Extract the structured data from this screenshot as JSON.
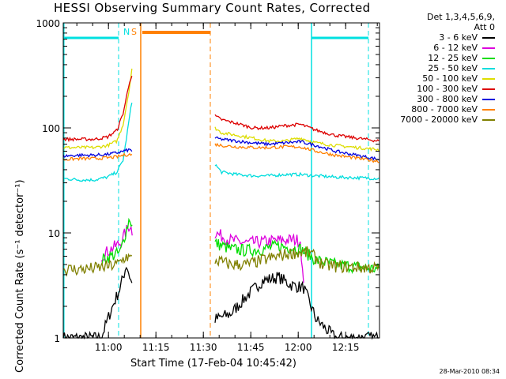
{
  "chart_data": {
    "type": "line",
    "title": "HESSI Observing Summary Count Rates, Corrected",
    "xlabel": "Start Time (17-Feb-04 10:45:42)",
    "ylabel": "Corrected Count Rate (s⁻¹ detector⁻¹)",
    "yscale": "log",
    "ylim": [
      1,
      1000
    ],
    "xlim_minutes": [
      0,
      100
    ],
    "x_ticks": [
      "11:00",
      "11:15",
      "11:30",
      "11:45",
      "12:00",
      "12:15"
    ],
    "x_tick_minutes": [
      14.3,
      29.3,
      44.3,
      59.3,
      74.3,
      89.3
    ],
    "y_ticks": [
      "1",
      "10",
      "100",
      "1000"
    ],
    "y_tick_values": [
      1,
      10,
      100,
      1000
    ],
    "legend_header": [
      "Det 1,3,4,5,6,9,",
      "Att 0"
    ],
    "series": [
      {
        "name": "3 - 6 keV",
        "color": "#000000",
        "pre": [
          [
            0,
            1.0
          ],
          [
            12,
            1.0
          ],
          [
            15,
            1.8
          ],
          [
            18,
            3.0
          ],
          [
            20,
            5.0
          ],
          [
            22,
            3.0
          ]
        ],
        "post": [
          [
            48,
            1.5
          ],
          [
            53,
            1.7
          ],
          [
            58,
            2.5
          ],
          [
            63,
            3.5
          ],
          [
            68,
            3.8
          ],
          [
            72,
            3.2
          ],
          [
            76,
            3.0
          ],
          [
            80,
            1.5
          ],
          [
            86,
            1.0
          ],
          [
            100,
            1.0
          ]
        ]
      },
      {
        "name": "6 - 12 keV",
        "color": "#dd00dd",
        "pre": [
          [
            12,
            6.0
          ],
          [
            15,
            7.0
          ],
          [
            18,
            8.0
          ],
          [
            21,
            12
          ],
          [
            22,
            10
          ]
        ],
        "post": [
          [
            48,
            10
          ],
          [
            53,
            8.5
          ],
          [
            58,
            8.0
          ],
          [
            63,
            8.2
          ],
          [
            68,
            8.5
          ],
          [
            73,
            8.6
          ],
          [
            75,
            8.5
          ],
          [
            76,
            3.0
          ]
        ]
      },
      {
        "name": "12 - 25 keV",
        "color": "#00dd00",
        "pre": [
          [
            12,
            5.5
          ],
          [
            15,
            6.0
          ],
          [
            18,
            6.5
          ],
          [
            21,
            14
          ],
          [
            22,
            11
          ]
        ],
        "post": [
          [
            48,
            8.0
          ],
          [
            53,
            7.0
          ],
          [
            58,
            6.8
          ],
          [
            63,
            7.0
          ],
          [
            68,
            7.5
          ],
          [
            75,
            7.0
          ],
          [
            80,
            5.5
          ],
          [
            86,
            5.0
          ],
          [
            100,
            4.5
          ]
        ]
      },
      {
        "name": "25 - 50 keV",
        "color": "#00dddd",
        "pre": [
          [
            0,
            33
          ],
          [
            5,
            32
          ],
          [
            10,
            32
          ],
          [
            14,
            34
          ],
          [
            17,
            38
          ],
          [
            19,
            50
          ],
          [
            21,
            130
          ],
          [
            22,
            200
          ]
        ],
        "post": [
          [
            48,
            45
          ],
          [
            50,
            38
          ],
          [
            55,
            36
          ],
          [
            60,
            35
          ],
          [
            65,
            35
          ],
          [
            70,
            36
          ],
          [
            75,
            36
          ],
          [
            80,
            35
          ],
          [
            86,
            34
          ],
          [
            100,
            33
          ]
        ]
      },
      {
        "name": "50 - 100 keV",
        "color": "#dddd00",
        "pre": [
          [
            0,
            65
          ],
          [
            5,
            65
          ],
          [
            10,
            65
          ],
          [
            14,
            68
          ],
          [
            17,
            75
          ],
          [
            19,
            110
          ],
          [
            21,
            250
          ],
          [
            22,
            420
          ]
        ],
        "post": [
          [
            48,
            100
          ],
          [
            50,
            90
          ],
          [
            55,
            85
          ],
          [
            60,
            80
          ],
          [
            65,
            75
          ],
          [
            70,
            75
          ],
          [
            75,
            80
          ],
          [
            80,
            72
          ],
          [
            86,
            68
          ],
          [
            100,
            62
          ]
        ]
      },
      {
        "name": "100 - 300 keV",
        "color": "#dd0000",
        "pre": [
          [
            0,
            78
          ],
          [
            5,
            78
          ],
          [
            10,
            78
          ],
          [
            14,
            82
          ],
          [
            17,
            95
          ],
          [
            19,
            140
          ],
          [
            21,
            280
          ],
          [
            22,
            330
          ]
        ],
        "post": [
          [
            48,
            130
          ],
          [
            50,
            120
          ],
          [
            55,
            110
          ],
          [
            60,
            100
          ],
          [
            65,
            100
          ],
          [
            70,
            105
          ],
          [
            75,
            108
          ],
          [
            80,
            95
          ],
          [
            86,
            85
          ],
          [
            100,
            75
          ]
        ]
      },
      {
        "name": "300 - 800 keV",
        "color": "#0000dd",
        "pre": [
          [
            0,
            54
          ],
          [
            5,
            55
          ],
          [
            10,
            55
          ],
          [
            14,
            56
          ],
          [
            17,
            58
          ],
          [
            19,
            60
          ],
          [
            21,
            62
          ],
          [
            22,
            60
          ]
        ],
        "post": [
          [
            48,
            80
          ],
          [
            50,
            78
          ],
          [
            55,
            75
          ],
          [
            60,
            72
          ],
          [
            65,
            70
          ],
          [
            70,
            72
          ],
          [
            75,
            74
          ],
          [
            80,
            68
          ],
          [
            86,
            60
          ],
          [
            100,
            50
          ]
        ]
      },
      {
        "name": "800 - 7000 keV",
        "color": "#ff8000",
        "pre": [
          [
            0,
            50
          ],
          [
            5,
            51
          ],
          [
            10,
            51
          ],
          [
            14,
            52
          ],
          [
            17,
            53
          ],
          [
            19,
            55
          ],
          [
            21,
            56
          ],
          [
            22,
            55
          ]
        ],
        "post": [
          [
            48,
            70
          ],
          [
            50,
            68
          ],
          [
            55,
            66
          ],
          [
            60,
            65
          ],
          [
            65,
            65
          ],
          [
            70,
            66
          ],
          [
            75,
            66
          ],
          [
            80,
            60
          ],
          [
            86,
            55
          ],
          [
            100,
            48
          ]
        ]
      },
      {
        "name": "7000 - 20000 keV",
        "color": "#808000",
        "pre": [
          [
            0,
            4.5
          ],
          [
            5,
            4.5
          ],
          [
            10,
            4.6
          ],
          [
            14,
            4.8
          ],
          [
            17,
            5.0
          ],
          [
            20,
            6.0
          ],
          [
            22,
            5.5
          ]
        ],
        "post": [
          [
            48,
            5.5
          ],
          [
            53,
            5.0
          ],
          [
            58,
            5.0
          ],
          [
            63,
            5.5
          ],
          [
            68,
            6.0
          ],
          [
            73,
            6.5
          ],
          [
            78,
            6.5
          ],
          [
            82,
            5.0
          ],
          [
            86,
            4.8
          ],
          [
            100,
            4.6
          ]
        ]
      }
    ],
    "markers": {
      "N_label": "N",
      "S_label": "S"
    }
  },
  "footer": "28-Mar-2010 08:34"
}
